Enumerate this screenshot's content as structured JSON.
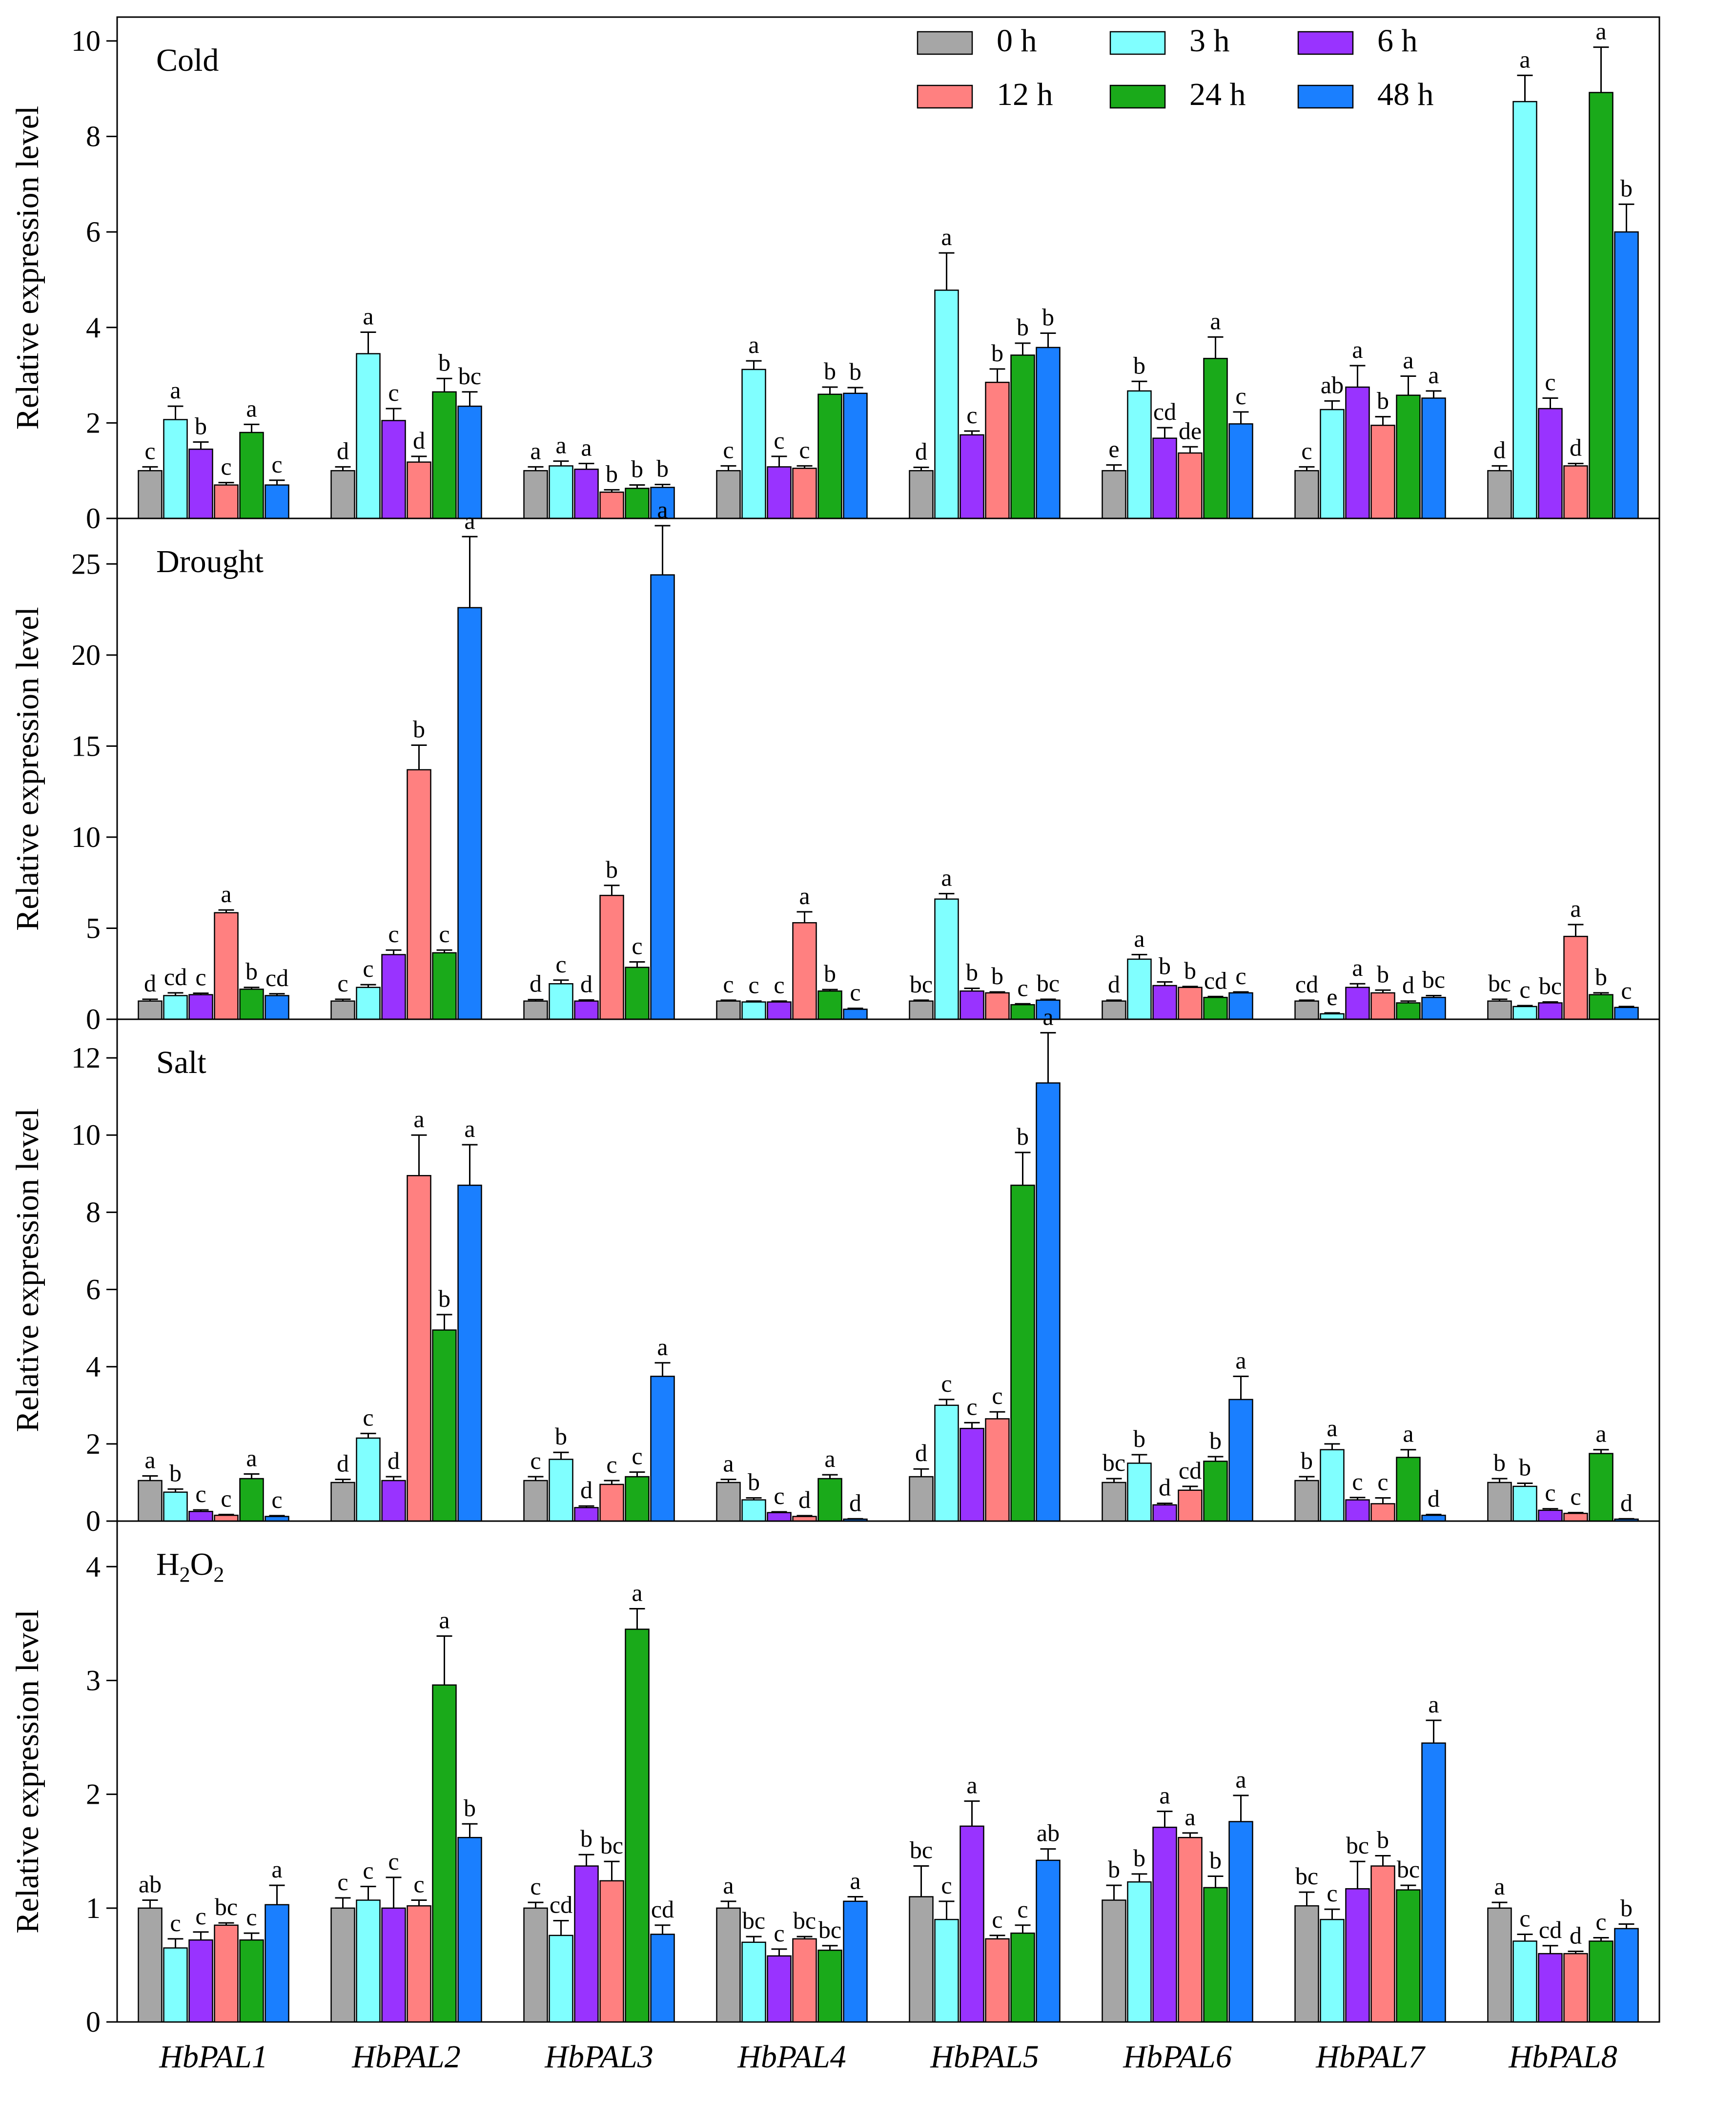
{
  "chart_data": {
    "type": "bar",
    "ylabel": "Relative expression level",
    "genes": [
      "HbPAL1",
      "HbPAL2",
      "HbPAL3",
      "HbPAL4",
      "HbPAL5",
      "HbPAL6",
      "HbPAL7",
      "HbPAL8"
    ],
    "series": [
      {
        "name": "0 h",
        "color": "#a6a6a6"
      },
      {
        "name": "3 h",
        "color": "#80ffff"
      },
      {
        "name": "6 h",
        "color": "#9933ff"
      },
      {
        "name": "12 h",
        "color": "#ff8080"
      },
      {
        "name": "24 h",
        "color": "#1aaa1a"
      },
      {
        "name": "48 h",
        "color": "#1a7fff"
      }
    ],
    "legend_location": "top-right of Cold panel",
    "panels": [
      {
        "title": "Cold",
        "ylim": [
          0,
          10.5
        ],
        "yticks": [
          0,
          2,
          4,
          6,
          8,
          10
        ],
        "values": [
          [
            1.0,
            2.07,
            1.45,
            0.7,
            1.8,
            0.7
          ],
          [
            1.0,
            3.45,
            2.05,
            1.18,
            2.65,
            2.35
          ],
          [
            1.0,
            1.1,
            1.03,
            0.55,
            0.63,
            0.65
          ],
          [
            1.0,
            3.12,
            1.08,
            1.05,
            2.6,
            2.62
          ],
          [
            1.0,
            4.78,
            1.75,
            2.85,
            3.42,
            3.58
          ],
          [
            1.0,
            2.67,
            1.68,
            1.37,
            3.35,
            1.98
          ],
          [
            1.0,
            2.28,
            2.75,
            1.95,
            2.58,
            2.52
          ],
          [
            1.0,
            8.73,
            2.3,
            1.1,
            8.92,
            6.0
          ]
        ],
        "errors": [
          [
            0.08,
            0.28,
            0.15,
            0.05,
            0.17,
            0.1
          ],
          [
            0.08,
            0.45,
            0.25,
            0.12,
            0.28,
            0.3
          ],
          [
            0.08,
            0.1,
            0.12,
            0.05,
            0.07,
            0.06
          ],
          [
            0.1,
            0.18,
            0.22,
            0.05,
            0.15,
            0.12
          ],
          [
            0.07,
            0.78,
            0.08,
            0.28,
            0.25,
            0.3
          ],
          [
            0.12,
            0.2,
            0.22,
            0.13,
            0.45,
            0.25
          ],
          [
            0.08,
            0.18,
            0.45,
            0.18,
            0.4,
            0.15
          ],
          [
            0.1,
            0.55,
            0.22,
            0.05,
            0.95,
            0.58
          ]
        ],
        "letters": [
          [
            "c",
            "a",
            "b",
            "c",
            "a",
            "c"
          ],
          [
            "d",
            "a",
            "c",
            "d",
            "b",
            "bc"
          ],
          [
            "a",
            "a",
            "a",
            "b",
            "b",
            "b"
          ],
          [
            "c",
            "a",
            "c",
            "c",
            "b",
            "b"
          ],
          [
            "d",
            "a",
            "c",
            "b",
            "b",
            "b"
          ],
          [
            "e",
            "b",
            "cd",
            "de",
            "a",
            "c"
          ],
          [
            "c",
            "ab",
            "a",
            "b",
            "a",
            "a"
          ],
          [
            "d",
            "a",
            "c",
            "d",
            "a",
            "b"
          ]
        ]
      },
      {
        "title": "Drought",
        "ylim": [
          0,
          27.5
        ],
        "yticks": [
          0,
          5,
          10,
          15,
          20,
          25
        ],
        "values": [
          [
            1.0,
            1.3,
            1.35,
            5.85,
            1.65,
            1.3
          ],
          [
            1.0,
            1.75,
            3.55,
            13.7,
            3.65,
            22.6
          ],
          [
            1.0,
            1.95,
            1.0,
            6.8,
            2.85,
            24.4
          ],
          [
            1.0,
            0.95,
            0.95,
            5.3,
            1.55,
            0.55
          ],
          [
            1.0,
            6.6,
            1.55,
            1.45,
            0.8,
            1.05
          ],
          [
            1.0,
            3.3,
            1.85,
            1.75,
            1.2,
            1.45
          ],
          [
            1.0,
            0.3,
            1.75,
            1.45,
            0.9,
            1.2
          ],
          [
            1.0,
            0.7,
            0.9,
            4.55,
            1.35,
            0.65
          ]
        ],
        "errors": [
          [
            0.1,
            0.15,
            0.08,
            0.15,
            0.1,
            0.1
          ],
          [
            0.1,
            0.15,
            0.25,
            1.35,
            0.15,
            3.9
          ],
          [
            0.08,
            0.2,
            0.06,
            0.55,
            0.3,
            2.7
          ],
          [
            0.05,
            0.05,
            0.05,
            0.6,
            0.08,
            0.05
          ],
          [
            0.05,
            0.3,
            0.15,
            0.05,
            0.05,
            0.05
          ],
          [
            0.05,
            0.25,
            0.2,
            0.05,
            0.05,
            0.05
          ],
          [
            0.05,
            0.05,
            0.2,
            0.15,
            0.1,
            0.1
          ],
          [
            0.1,
            0.05,
            0.05,
            0.65,
            0.1,
            0.05
          ]
        ],
        "letters": [
          [
            "d",
            "cd",
            "c",
            "a",
            "b",
            "cd"
          ],
          [
            "c",
            "c",
            "c",
            "b",
            "c",
            "a"
          ],
          [
            "d",
            "c",
            "d",
            "b",
            "c",
            "a"
          ],
          [
            "c",
            "c",
            "c",
            "a",
            "b",
            "c"
          ],
          [
            "bc",
            "a",
            "b",
            "b",
            "c",
            "bc"
          ],
          [
            "d",
            "a",
            "b",
            "b",
            "cd",
            "c"
          ],
          [
            "cd",
            "e",
            "a",
            "b",
            "d",
            "bc"
          ],
          [
            "bc",
            "c",
            "bc",
            "a",
            "b",
            "c"
          ]
        ]
      },
      {
        "title": "Salt",
        "ylim": [
          0,
          13.0
        ],
        "yticks": [
          0,
          2,
          4,
          6,
          8,
          10,
          12
        ],
        "values": [
          [
            1.05,
            0.75,
            0.25,
            0.15,
            1.1,
            0.12
          ],
          [
            1.0,
            2.15,
            1.05,
            8.95,
            4.95,
            8.7
          ],
          [
            1.05,
            1.6,
            0.35,
            0.95,
            1.15,
            3.75
          ],
          [
            1.0,
            0.55,
            0.22,
            0.12,
            1.1,
            0.05
          ],
          [
            1.15,
            3.0,
            2.4,
            2.65,
            8.7,
            11.35
          ],
          [
            1.0,
            1.5,
            0.42,
            0.8,
            1.55,
            3.15
          ],
          [
            1.05,
            1.85,
            0.55,
            0.45,
            1.65,
            0.15
          ],
          [
            1.0,
            0.9,
            0.28,
            0.2,
            1.75,
            0.05
          ]
        ],
        "errors": [
          [
            0.12,
            0.08,
            0.04,
            0.02,
            0.12,
            0.02
          ],
          [
            0.08,
            0.12,
            0.1,
            1.05,
            0.4,
            1.05
          ],
          [
            0.1,
            0.18,
            0.04,
            0.1,
            0.12,
            0.35
          ],
          [
            0.08,
            0.05,
            0.02,
            0.02,
            0.1,
            0.01
          ],
          [
            0.2,
            0.15,
            0.15,
            0.18,
            0.85,
            1.3
          ],
          [
            0.1,
            0.22,
            0.04,
            0.1,
            0.12,
            0.6
          ],
          [
            0.1,
            0.15,
            0.06,
            0.15,
            0.2,
            0.02
          ],
          [
            0.1,
            0.08,
            0.04,
            0.02,
            0.1,
            0.01
          ]
        ],
        "letters": [
          [
            "a",
            "b",
            "c",
            "c",
            "a",
            "c"
          ],
          [
            "d",
            "c",
            "d",
            "a",
            "b",
            "a"
          ],
          [
            "c",
            "b",
            "d",
            "c",
            "c",
            "a"
          ],
          [
            "a",
            "b",
            "c",
            "d",
            "a",
            "d"
          ],
          [
            "d",
            "c",
            "c",
            "c",
            "b",
            "a"
          ],
          [
            "bc",
            "b",
            "d",
            "cd",
            "b",
            "a"
          ],
          [
            "b",
            "a",
            "c",
            "c",
            "a",
            "d"
          ],
          [
            "b",
            "b",
            "c",
            "c",
            "a",
            "d"
          ]
        ]
      },
      {
        "title": "H₂O₂",
        "title_base": "H",
        "title_sub1": "2",
        "title_mid": "O",
        "title_sub2": "2",
        "ylim": [
          0,
          4.4
        ],
        "yticks": [
          0,
          1,
          2,
          3,
          4
        ],
        "values": [
          [
            1.0,
            0.65,
            0.72,
            0.85,
            0.72,
            1.03
          ],
          [
            1.0,
            1.07,
            1.0,
            1.02,
            2.96,
            1.62
          ],
          [
            1.0,
            0.76,
            1.37,
            1.24,
            3.45,
            0.77
          ],
          [
            1.0,
            0.7,
            0.58,
            0.73,
            0.63,
            1.06
          ],
          [
            1.1,
            0.9,
            1.72,
            0.73,
            0.78,
            1.42
          ],
          [
            1.07,
            1.23,
            1.71,
            1.62,
            1.18,
            1.76
          ],
          [
            1.02,
            0.9,
            1.17,
            1.37,
            1.16,
            2.45
          ],
          [
            1.0,
            0.71,
            0.6,
            0.6,
            0.71,
            0.82
          ]
        ],
        "errors": [
          [
            0.07,
            0.08,
            0.07,
            0.02,
            0.06,
            0.17
          ],
          [
            0.09,
            0.12,
            0.27,
            0.05,
            0.43,
            0.12
          ],
          [
            0.05,
            0.13,
            0.1,
            0.17,
            0.18,
            0.08
          ],
          [
            0.06,
            0.05,
            0.06,
            0.02,
            0.04,
            0.04
          ],
          [
            0.27,
            0.16,
            0.22,
            0.03,
            0.07,
            0.1
          ],
          [
            0.13,
            0.07,
            0.14,
            0.04,
            0.1,
            0.23
          ],
          [
            0.12,
            0.09,
            0.24,
            0.09,
            0.04,
            0.2
          ],
          [
            0.05,
            0.06,
            0.07,
            0.02,
            0.03,
            0.04
          ]
        ],
        "letters": [
          [
            "ab",
            "c",
            "c",
            "bc",
            "c",
            "a"
          ],
          [
            "c",
            "c",
            "c",
            "c",
            "a",
            "b"
          ],
          [
            "c",
            "cd",
            "b",
            "bc",
            "a",
            "cd"
          ],
          [
            "a",
            "bc",
            "c",
            "bc",
            "bc",
            "a"
          ],
          [
            "bc",
            "c",
            "a",
            "c",
            "c",
            "ab"
          ],
          [
            "b",
            "b",
            "a",
            "a",
            "b",
            "a"
          ],
          [
            "bc",
            "c",
            "bc",
            "b",
            "bc",
            "a"
          ],
          [
            "a",
            "c",
            "cd",
            "d",
            "c",
            "b"
          ]
        ]
      }
    ]
  }
}
